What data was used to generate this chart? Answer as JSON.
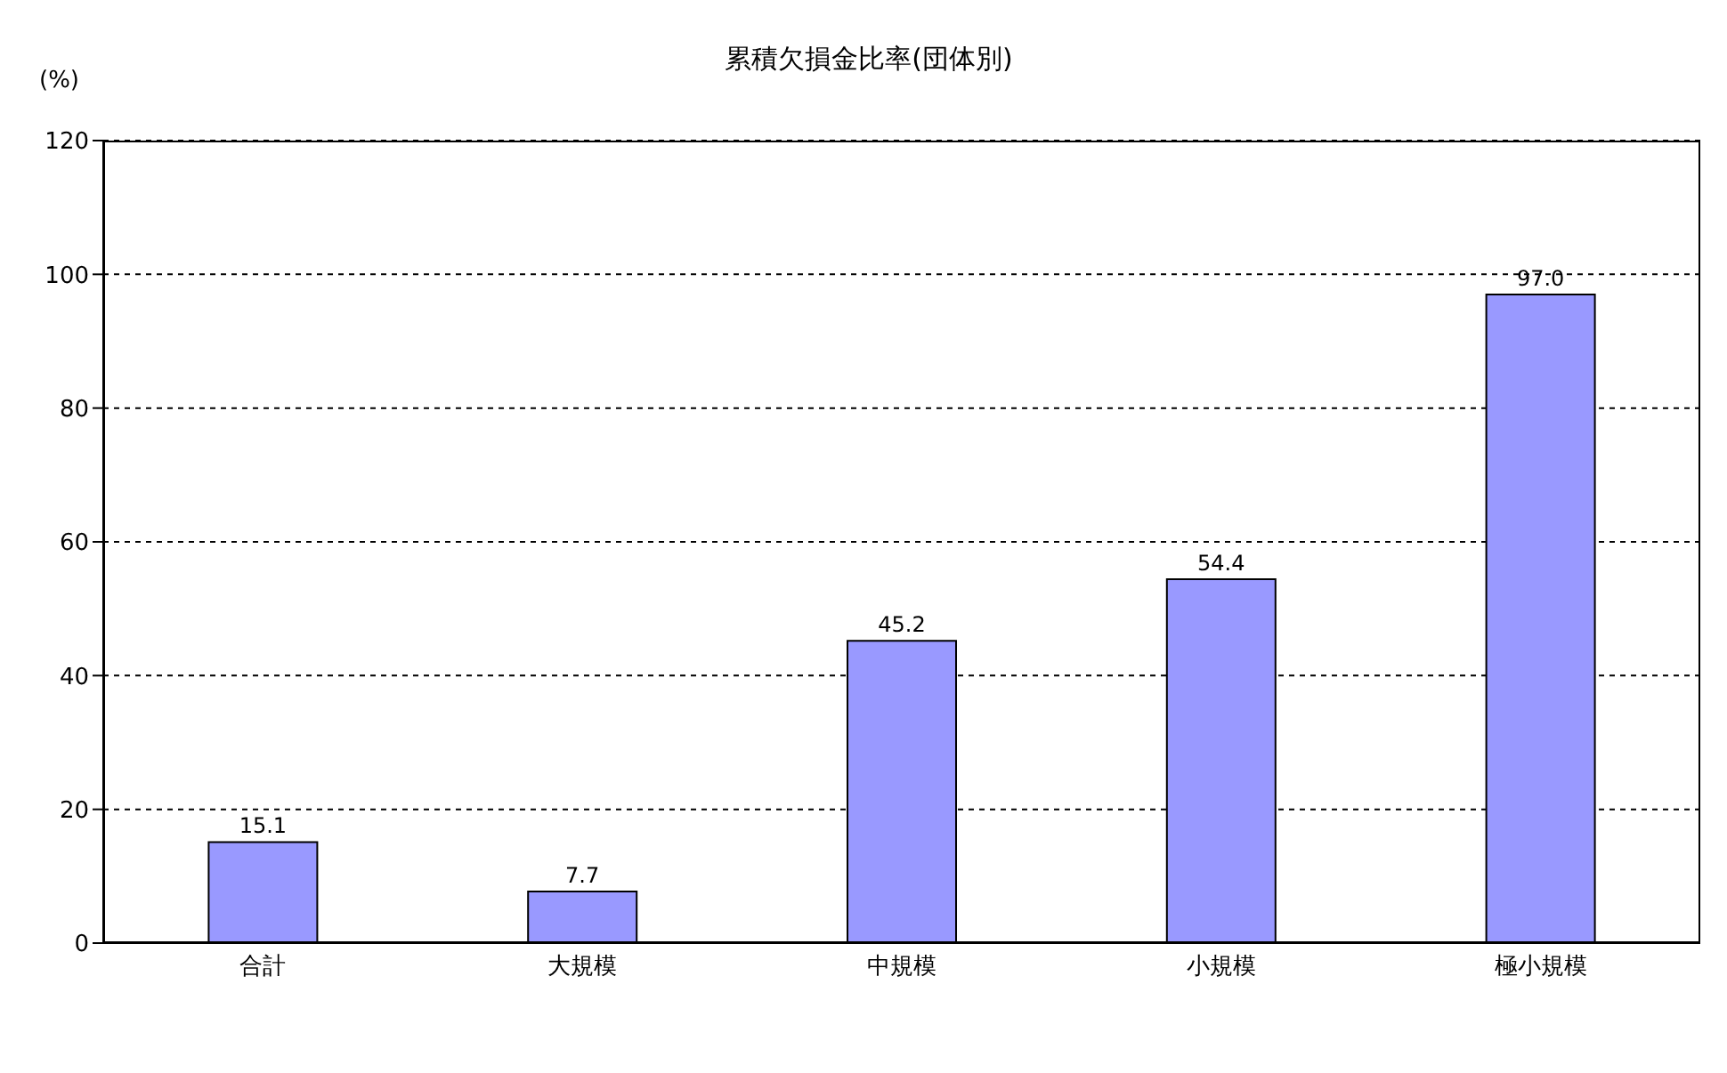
{
  "chart_data": {
    "type": "bar",
    "title": "累積欠損金比率(団体別)",
    "ylabel": "(%)",
    "categories": [
      "合計",
      "大規模",
      "中規模",
      "小規模",
      "極小規模"
    ],
    "values": [
      15.1,
      7.7,
      45.2,
      54.4,
      97.0
    ],
    "value_labels": [
      "15.1",
      "7.7",
      "45.2",
      "54.4",
      "97.0"
    ],
    "color": "#9999ff",
    "ylim": [
      0,
      120
    ],
    "yticks": [
      0,
      20,
      40,
      60,
      80,
      100,
      120
    ],
    "grid": "y"
  }
}
